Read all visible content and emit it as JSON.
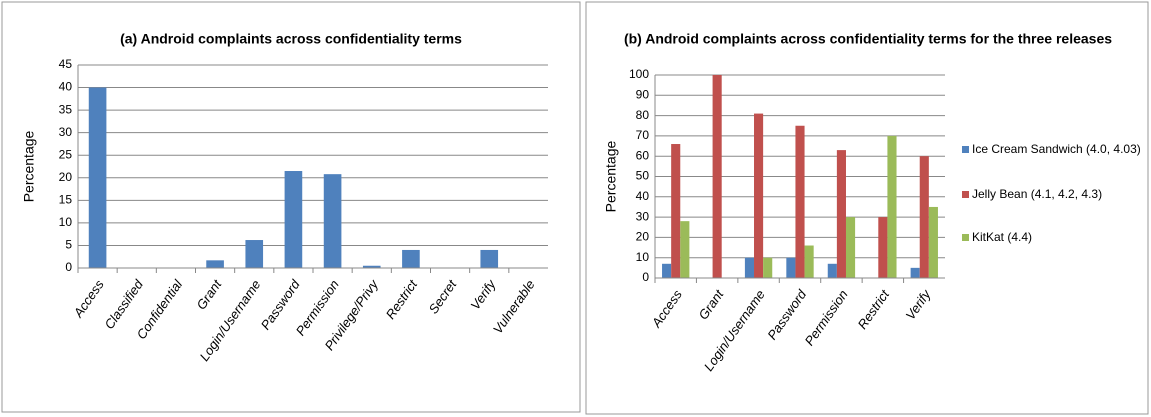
{
  "chart_data": [
    {
      "type": "bar",
      "title": "(a) Android complaints across confidentiality  terms",
      "ylabel": "Percentage",
      "categories": [
        "Access",
        "Classified",
        "Confidential",
        "Grant",
        "Login/Username",
        "Password",
        "Permission",
        "Privilege/Privy",
        "Restrict",
        "Secret",
        "Verify",
        "Vulnerable"
      ],
      "values": [
        40,
        0,
        0,
        1.7,
        6.2,
        21.5,
        20.8,
        0.5,
        4,
        0,
        4,
        0
      ],
      "color": "#4f81bd",
      "ylim": [
        0,
        45
      ],
      "yticks": [
        0,
        5,
        10,
        15,
        20,
        25,
        30,
        35,
        40,
        45
      ],
      "grid": true
    },
    {
      "type": "bar",
      "title": "(b) Android complaints across confidentiality  terms for the three releases",
      "ylabel": "Percentage",
      "categories": [
        "Access",
        "Grant",
        "Login/Username",
        "Password",
        "Permission",
        "Restrict",
        "Verify"
      ],
      "series": [
        {
          "name": "Ice Cream Sandwich (4.0, 4.03)",
          "color": "#4f81bd",
          "values": [
            7,
            0,
            10,
            10,
            7,
            0,
            5
          ]
        },
        {
          "name": "Jelly Bean (4.1, 4.2, 4.3)",
          "color": "#c0504d",
          "values": [
            66,
            100,
            81,
            75,
            63,
            30,
            60
          ]
        },
        {
          "name": "KitKat (4.4)",
          "color": "#9bbb59",
          "values": [
            28,
            0,
            10,
            16,
            30,
            70,
            35
          ]
        }
      ],
      "ylim": [
        0,
        100
      ],
      "yticks": [
        0,
        10,
        20,
        30,
        40,
        50,
        60,
        70,
        80,
        90,
        100
      ],
      "grid": true,
      "legend": "right"
    }
  ]
}
